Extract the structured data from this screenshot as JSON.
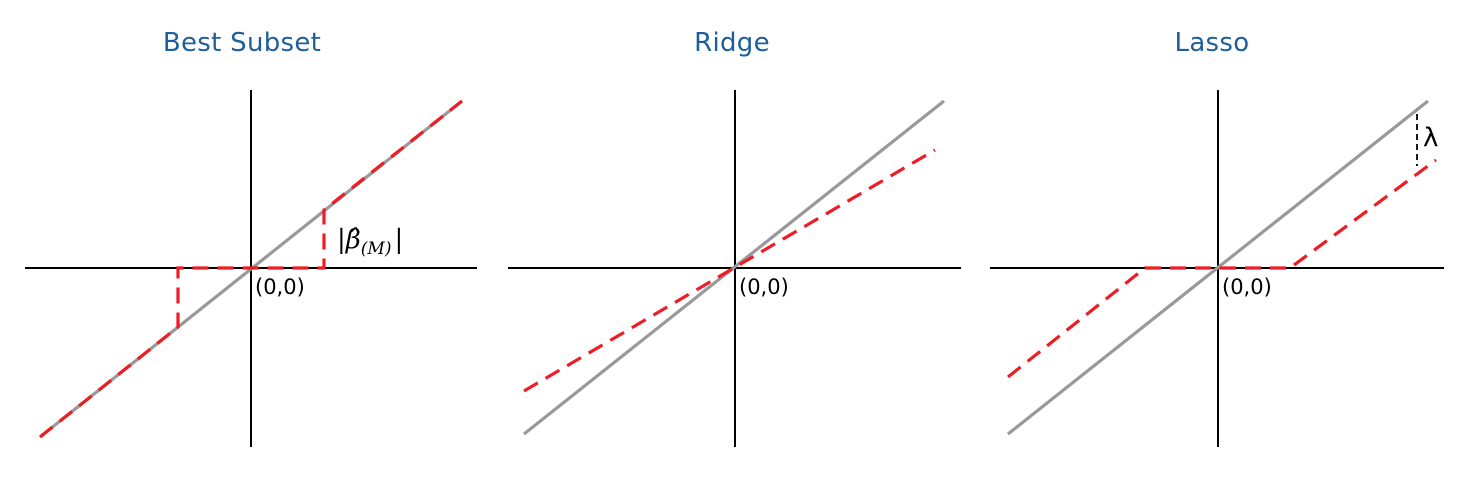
{
  "colors": {
    "title": "#1f5f99",
    "axis": "#000000",
    "identity_line": "#999999",
    "estimator_line": "#ee1c25"
  },
  "panels": [
    {
      "title": "Best Subset",
      "origin_label": "(0,0)",
      "threshold_label": {
        "bar_open": "|",
        "beta": "β̂",
        "sub": "(M)",
        "bar_close": "|"
      },
      "estimator": "hard-threshold"
    },
    {
      "title": "Ridge",
      "origin_label": "(0,0)",
      "estimator": "proportional-shrinkage"
    },
    {
      "title": "Lasso",
      "origin_label": "(0,0)",
      "shift_label": "λ",
      "estimator": "soft-threshold"
    }
  ]
}
